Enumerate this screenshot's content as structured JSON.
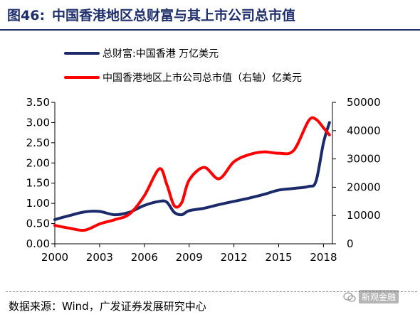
{
  "header": {
    "fig_label": "图46:",
    "title": "中国香港地区总财富与其上市公司总市值"
  },
  "source": {
    "text": "数据来源：Wind，广发证券发展研究中心"
  },
  "watermark": {
    "text": "新观金融",
    "icon": "wechat-icon"
  },
  "colors": {
    "title": "#1f2f6b",
    "series_wealth": "#1b2a6b",
    "series_mktcap": "#ff0000",
    "axis": "#000000"
  },
  "chart_data": {
    "type": "line",
    "xlim": [
      2000,
      2018.6
    ],
    "x_ticks": [
      2000,
      2003,
      2006,
      2009,
      2012,
      2015,
      2018
    ],
    "left_axis": {
      "ylim": [
        0,
        3.5
      ],
      "ticks": [
        "0.00",
        "0.50",
        "1.00",
        "1.50",
        "2.00",
        "2.50",
        "3.00",
        "3.50"
      ]
    },
    "right_axis": {
      "ylim": [
        0,
        50000
      ],
      "ticks": [
        "0",
        "10000",
        "20000",
        "30000",
        "40000",
        "50000"
      ]
    },
    "grid": false,
    "legend_position": "top-left",
    "series": [
      {
        "name": "总财富:中国香港 万亿美元",
        "axis": "left",
        "color": "#1b2a6b",
        "x": [
          2000,
          2001,
          2002,
          2003,
          2004,
          2005,
          2006,
          2007,
          2007.5,
          2008,
          2008.5,
          2009,
          2010,
          2011,
          2012,
          2013,
          2014,
          2015,
          2016,
          2017,
          2017.5,
          2018,
          2018.4
        ],
        "values": [
          0.6,
          0.7,
          0.79,
          0.8,
          0.72,
          0.78,
          0.95,
          1.05,
          1.03,
          0.78,
          0.72,
          0.82,
          0.88,
          0.97,
          1.05,
          1.13,
          1.22,
          1.33,
          1.37,
          1.42,
          1.55,
          2.5,
          3.0
        ]
      },
      {
        "name": "中国香港地区上市公司总市值（右轴）亿美元",
        "axis": "right",
        "color": "#ff0000",
        "x": [
          2000,
          2001,
          2002,
          2003,
          2004,
          2005,
          2006,
          2007,
          2007.5,
          2008,
          2008.5,
          2009,
          2010,
          2011,
          2012,
          2013,
          2014,
          2015,
          2016,
          2017,
          2017.5,
          2018,
          2018.4
        ],
        "values": [
          6500,
          5500,
          4800,
          7000,
          8500,
          10500,
          17000,
          26500,
          21000,
          13500,
          14500,
          22500,
          27000,
          23000,
          29000,
          31500,
          32500,
          32000,
          33000,
          43500,
          44000,
          41000,
          38500
        ]
      }
    ]
  }
}
